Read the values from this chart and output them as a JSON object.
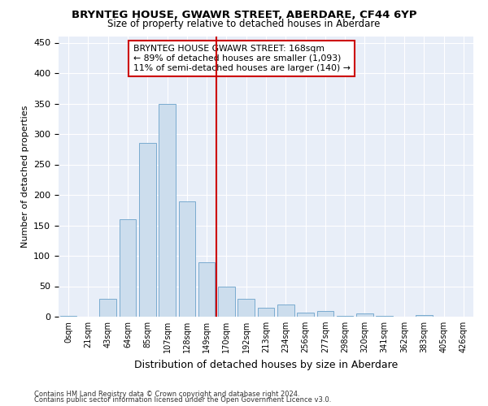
{
  "title": "BRYNTEG HOUSE, GWAWR STREET, ABERDARE, CF44 6YP",
  "subtitle": "Size of property relative to detached houses in Aberdare",
  "xlabel": "Distribution of detached houses by size in Aberdare",
  "ylabel": "Number of detached properties",
  "bar_values": [
    2,
    0,
    30,
    160,
    285,
    350,
    190,
    90,
    50,
    30,
    15,
    20,
    7,
    10,
    2,
    5,
    2,
    0,
    3,
    0,
    0
  ],
  "x_labels": [
    "0sqm",
    "21sqm",
    "43sqm",
    "64sqm",
    "85sqm",
    "107sqm",
    "128sqm",
    "149sqm",
    "170sqm",
    "192sqm",
    "213sqm",
    "234sqm",
    "256sqm",
    "277sqm",
    "298sqm",
    "320sqm",
    "341sqm",
    "362sqm",
    "383sqm",
    "405sqm",
    "426sqm"
  ],
  "bar_color": "#ccdded",
  "bar_edge_color": "#7aabcf",
  "bar_width": 0.85,
  "vline_x": 7.5,
  "vline_color": "#cc0000",
  "annotation_title": "BRYNTEG HOUSE GWAWR STREET: 168sqm",
  "annotation_line1": "← 89% of detached houses are smaller (1,093)",
  "annotation_line2": "11% of semi-detached houses are larger (140) →",
  "annotation_box_edge": "#cc0000",
  "ylim": [
    0,
    460
  ],
  "yticks": [
    0,
    50,
    100,
    150,
    200,
    250,
    300,
    350,
    400,
    450
  ],
  "bg_color": "#e8eef8",
  "grid_color": "#ffffff",
  "footnote1": "Contains HM Land Registry data © Crown copyright and database right 2024.",
  "footnote2": "Contains public sector information licensed under the Open Government Licence v3.0."
}
